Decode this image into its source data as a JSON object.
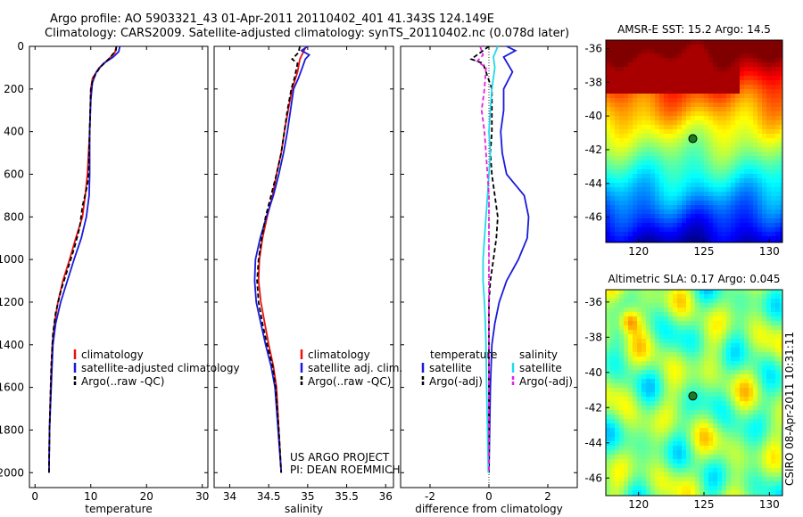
{
  "title_line1": "Argo profile: AO 5903321_43 01-Apr-2011 20110402_401 41.343S 124.149E",
  "title_line2": "Climatology: CARS2009. Satellite-adjusted climatology: synTS_20110402.nc (0.078d later)",
  "credit_line1": "US ARGO PROJECT",
  "credit_line2": "PI: DEAN ROEMMICH",
  "stamp": "CSIRO 08-Apr-2011 10:31:11",
  "colors": {
    "climatology": "#e8120f",
    "satellite": "#1a1adc",
    "argo": "#000000",
    "sat_salinity": "#22d8ec",
    "argo_salinity": "#e61ee6",
    "marker": "#1e7a1e"
  },
  "chart_data": [
    {
      "type": "line",
      "xlabel": "temperature",
      "ylabel": "",
      "xlim": [
        -1,
        31
      ],
      "ylim": [
        2070,
        0
      ],
      "xticks": [
        0,
        10,
        20,
        30
      ],
      "yticks": [
        0,
        200,
        400,
        600,
        800,
        1000,
        1200,
        1400,
        1600,
        1800,
        2000
      ],
      "legend": [
        "climatology",
        "satellite-adjusted climatology",
        "Argo(..raw -QC)"
      ],
      "legend_location": "lower-left",
      "series": [
        {
          "name": "climatology",
          "color": "#e8120f",
          "dash": "",
          "points": [
            [
              14.6,
              0
            ],
            [
              14.3,
              30
            ],
            [
              13.2,
              60
            ],
            [
              11.5,
              100
            ],
            [
              10.3,
              150
            ],
            [
              10.0,
              200
            ],
            [
              9.8,
              400
            ],
            [
              9.4,
              600
            ],
            [
              9.0,
              700
            ],
            [
              8.5,
              800
            ],
            [
              7.3,
              900
            ],
            [
              6.2,
              1000
            ],
            [
              5.0,
              1100
            ],
            [
              4.1,
              1200
            ],
            [
              3.5,
              1300
            ],
            [
              3.1,
              1400
            ],
            [
              2.8,
              1600
            ],
            [
              2.6,
              1800
            ],
            [
              2.5,
              2000
            ]
          ]
        },
        {
          "name": "satellite-adjusted climatology",
          "color": "#1a1adc",
          "dash": "",
          "points": [
            [
              15.2,
              0
            ],
            [
              15.0,
              25
            ],
            [
              14.0,
              50
            ],
            [
              12.3,
              80
            ],
            [
              11.0,
              120
            ],
            [
              10.3,
              170
            ],
            [
              10.0,
              250
            ],
            [
              9.8,
              400
            ],
            [
              9.8,
              600
            ],
            [
              9.7,
              700
            ],
            [
              9.2,
              800
            ],
            [
              8.3,
              900
            ],
            [
              7.0,
              1000
            ],
            [
              5.8,
              1100
            ],
            [
              4.6,
              1200
            ],
            [
              3.7,
              1300
            ],
            [
              3.2,
              1400
            ],
            [
              2.9,
              1600
            ],
            [
              2.6,
              1800
            ],
            [
              2.5,
              2000
            ]
          ]
        },
        {
          "name": "Argo(..raw -QC)",
          "color": "#000000",
          "dash": "5,3",
          "points": [
            [
              14.6,
              0
            ],
            [
              14.5,
              20
            ],
            [
              13.2,
              60
            ],
            [
              11.6,
              100
            ],
            [
              10.4,
              150
            ],
            [
              10.0,
              200
            ],
            [
              9.8,
              400
            ],
            [
              9.6,
              600
            ],
            [
              9.4,
              650
            ],
            [
              8.5,
              750
            ],
            [
              8.0,
              850
            ],
            [
              7.0,
              950
            ],
            [
              5.8,
              1050
            ],
            [
              4.6,
              1150
            ],
            [
              3.7,
              1250
            ],
            [
              3.2,
              1350
            ],
            [
              2.9,
              1500
            ],
            [
              2.6,
              1800
            ],
            [
              2.5,
              2000
            ]
          ]
        }
      ]
    },
    {
      "type": "line",
      "xlabel": "salinity",
      "ylabel": "",
      "xlim": [
        33.8,
        36.1
      ],
      "ylim": [
        2070,
        0
      ],
      "xticks": [
        34,
        34.5,
        35,
        35.5,
        36
      ],
      "yticks": [],
      "legend": [
        "climatology",
        "satellite adj. clim.",
        "Argo(..raw -QC)"
      ],
      "legend_location": "lower-right",
      "series": [
        {
          "name": "climatology",
          "color": "#e8120f",
          "dash": "",
          "points": [
            [
              34.98,
              0
            ],
            [
              34.9,
              60
            ],
            [
              34.87,
              120
            ],
            [
              34.8,
              200
            ],
            [
              34.75,
              300
            ],
            [
              34.7,
              400
            ],
            [
              34.66,
              500
            ],
            [
              34.6,
              600
            ],
            [
              34.55,
              700
            ],
            [
              34.48,
              800
            ],
            [
              34.42,
              900
            ],
            [
              34.38,
              1000
            ],
            [
              34.37,
              1100
            ],
            [
              34.4,
              1200
            ],
            [
              34.45,
              1300
            ],
            [
              34.5,
              1400
            ],
            [
              34.56,
              1500
            ],
            [
              34.6,
              1600
            ],
            [
              34.63,
              1800
            ],
            [
              34.66,
              2000
            ]
          ]
        },
        {
          "name": "satellite adj. clim.",
          "color": "#1a1adc",
          "dash": "",
          "points": [
            [
              35.0,
              0
            ],
            [
              34.92,
              20
            ],
            [
              35.02,
              40
            ],
            [
              34.97,
              60
            ],
            [
              34.93,
              100
            ],
            [
              34.88,
              150
            ],
            [
              34.82,
              200
            ],
            [
              34.78,
              300
            ],
            [
              34.74,
              400
            ],
            [
              34.69,
              500
            ],
            [
              34.63,
              600
            ],
            [
              34.56,
              700
            ],
            [
              34.47,
              800
            ],
            [
              34.39,
              900
            ],
            [
              34.33,
              1000
            ],
            [
              34.32,
              1100
            ],
            [
              34.34,
              1200
            ],
            [
              34.4,
              1300
            ],
            [
              34.46,
              1400
            ],
            [
              34.53,
              1500
            ],
            [
              34.58,
              1600
            ],
            [
              34.62,
              1800
            ],
            [
              34.66,
              2000
            ]
          ]
        },
        {
          "name": "Argo(..raw -QC)",
          "color": "#000000",
          "dash": "5,3",
          "points": [
            [
              34.9,
              0
            ],
            [
              34.88,
              30
            ],
            [
              34.8,
              60
            ],
            [
              34.87,
              80
            ],
            [
              34.83,
              150
            ],
            [
              34.79,
              200
            ],
            [
              34.74,
              300
            ],
            [
              34.7,
              400
            ],
            [
              34.66,
              500
            ],
            [
              34.6,
              600
            ],
            [
              34.53,
              700
            ],
            [
              34.46,
              800
            ],
            [
              34.41,
              900
            ],
            [
              34.37,
              1000
            ],
            [
              34.35,
              1100
            ],
            [
              34.37,
              1200
            ],
            [
              34.42,
              1300
            ],
            [
              34.48,
              1400
            ],
            [
              34.55,
              1500
            ],
            [
              34.59,
              1600
            ],
            [
              34.63,
              1800
            ],
            [
              34.66,
              2000
            ]
          ]
        }
      ]
    },
    {
      "type": "line",
      "xlabel": "difference from climatology",
      "ylabel": "",
      "xlim": [
        -3,
        3
      ],
      "ylim": [
        2070,
        0
      ],
      "xticks": [
        -2,
        0,
        2
      ],
      "yticks": [],
      "legend_groups": [
        {
          "title": "temperature",
          "items": [
            "satellite",
            "Argo(-adj)"
          ]
        },
        {
          "title": "salinity",
          "items": [
            "satellite",
            "Argo(-adj)"
          ]
        }
      ],
      "legend_location": "lower",
      "series": [
        {
          "name": "temperature satellite",
          "color": "#1a1adc",
          "dash": "",
          "points": [
            [
              0.6,
              0
            ],
            [
              0.9,
              20
            ],
            [
              0.5,
              50
            ],
            [
              0.8,
              120
            ],
            [
              0.5,
              200
            ],
            [
              0.5,
              300
            ],
            [
              0.4,
              400
            ],
            [
              0.45,
              500
            ],
            [
              0.6,
              600
            ],
            [
              0.9,
              650
            ],
            [
              1.2,
              700
            ],
            [
              1.35,
              800
            ],
            [
              1.3,
              900
            ],
            [
              1.0,
              1000
            ],
            [
              0.6,
              1100
            ],
            [
              0.35,
              1200
            ],
            [
              0.2,
              1300
            ],
            [
              0.1,
              1400
            ],
            [
              0.05,
              1600
            ],
            [
              0,
              2000
            ]
          ]
        },
        {
          "name": "temperature Argo(-adj)",
          "color": "#000000",
          "dash": "5,3",
          "points": [
            [
              0,
              0
            ],
            [
              -0.6,
              60
            ],
            [
              -0.2,
              80
            ],
            [
              0.1,
              200
            ],
            [
              0.1,
              300
            ],
            [
              0.1,
              400
            ],
            [
              0.05,
              500
            ],
            [
              0.1,
              600
            ],
            [
              0.2,
              700
            ],
            [
              0.3,
              800
            ],
            [
              0.25,
              900
            ],
            [
              0.15,
              1000
            ],
            [
              0.05,
              1100
            ],
            [
              0,
              1200
            ],
            [
              0,
              1400
            ],
            [
              0,
              2000
            ]
          ]
        },
        {
          "name": "salinity satellite",
          "color": "#22d8ec",
          "dash": "",
          "points": [
            [
              0.3,
              0
            ],
            [
              0.15,
              50
            ],
            [
              0.2,
              100
            ],
            [
              0.1,
              200
            ],
            [
              0.05,
              300
            ],
            [
              0,
              400
            ],
            [
              0.05,
              500
            ],
            [
              0,
              600
            ],
            [
              -0.05,
              700
            ],
            [
              -0.1,
              800
            ],
            [
              -0.15,
              900
            ],
            [
              -0.2,
              1000
            ],
            [
              -0.2,
              1100
            ],
            [
              -0.15,
              1200
            ],
            [
              -0.12,
              1300
            ],
            [
              -0.1,
              1400
            ],
            [
              -0.08,
              1600
            ],
            [
              -0.05,
              1800
            ],
            [
              -0.02,
              2000
            ]
          ]
        },
        {
          "name": "salinity Argo(-adj)",
          "color": "#e61ee6",
          "dash": "5,3",
          "points": [
            [
              -0.3,
              0
            ],
            [
              -0.2,
              40
            ],
            [
              -0.4,
              70
            ],
            [
              -0.1,
              100
            ],
            [
              -0.15,
              200
            ],
            [
              -0.25,
              300
            ],
            [
              -0.15,
              400
            ],
            [
              -0.1,
              500
            ],
            [
              -0.05,
              600
            ],
            [
              0,
              700
            ],
            [
              0,
              900
            ],
            [
              0,
              1100
            ],
            [
              0,
              2000
            ]
          ]
        }
      ]
    },
    {
      "type": "heatmap",
      "title": "AMSR-E SST: 15.2 Argo: 14.5",
      "xlim": [
        117.5,
        131
      ],
      "ylim": [
        -47.5,
        -35.5
      ],
      "xticks": [
        120,
        125,
        130
      ],
      "yticks": [
        -36,
        -38,
        -40,
        -42,
        -44,
        -46
      ],
      "marker": {
        "lon": 124.149,
        "lat": -41.343
      },
      "field_description": "sea surface temperature, warm north to cool south"
    },
    {
      "type": "heatmap",
      "title": "Altimetric SLA: 0.17 Argo: 0.045",
      "xlim": [
        117.5,
        131
      ],
      "ylim": [
        -47,
        -35.3
      ],
      "xticks": [
        120,
        125,
        130
      ],
      "yticks": [
        -36,
        -38,
        -40,
        -42,
        -44,
        -46
      ],
      "marker": {
        "lon": 124.149,
        "lat": -41.343
      },
      "field_description": "sea level anomaly"
    }
  ]
}
